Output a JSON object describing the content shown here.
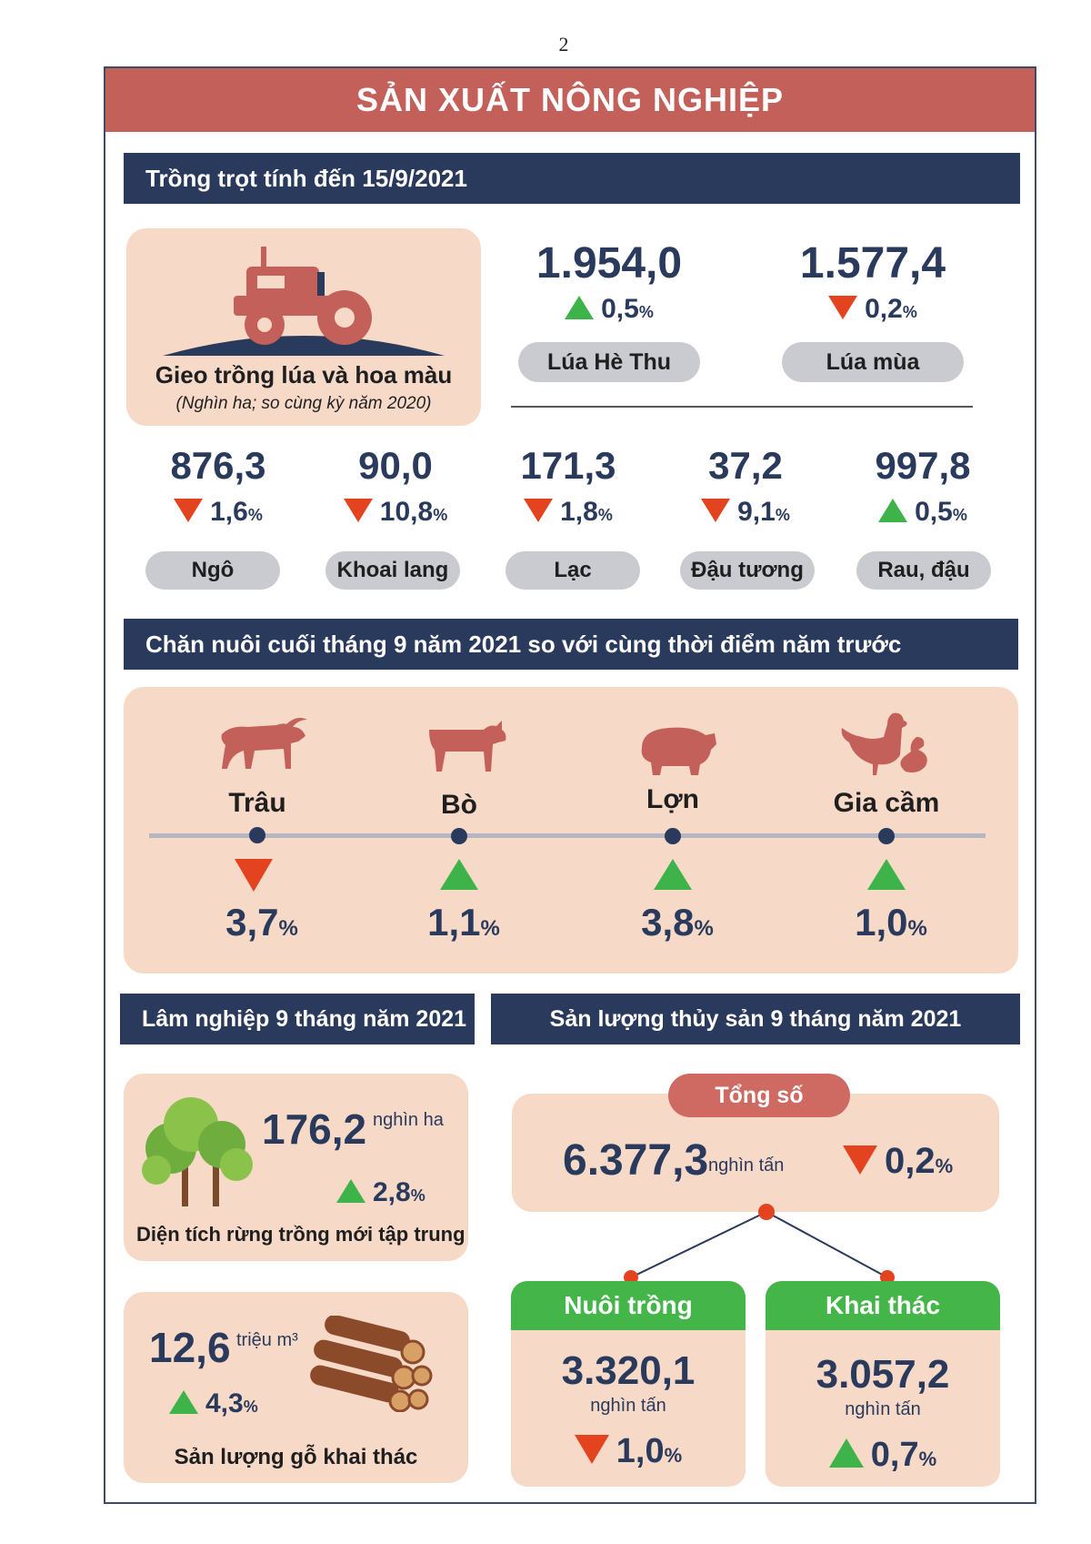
{
  "page_number": "2",
  "title": "SẢN XUẤT NÔNG NGHIỆP",
  "crops": {
    "header": "Trồng trọt tính đến 15/9/2021",
    "summary_label": "Gieo trồng lúa và hoa màu",
    "summary_note": "(Nghìn ha; so cùng kỳ năm 2020)",
    "top_items": [
      {
        "value": "1.954,0",
        "change": "0,5",
        "direction": "up",
        "label": "Lúa Hè Thu"
      },
      {
        "value": "1.577,4",
        "change": "0,2",
        "direction": "down",
        "label": "Lúa mùa"
      }
    ],
    "items": [
      {
        "value": "876,3",
        "change": "1,6",
        "direction": "down",
        "label": "Ngô"
      },
      {
        "value": "90,0",
        "change": "10,8",
        "direction": "down",
        "label": "Khoai lang"
      },
      {
        "value": "171,3",
        "change": "1,8",
        "direction": "down",
        "label": "Lạc"
      },
      {
        "value": "37,2",
        "change": "9,1",
        "direction": "down",
        "label": "Đậu tương"
      },
      {
        "value": "997,8",
        "change": "0,5",
        "direction": "up",
        "label": "Rau, đậu"
      }
    ]
  },
  "livestock": {
    "header": "Chăn nuôi cuối tháng 9 năm 2021 so với cùng thời điểm năm trước",
    "items": [
      {
        "label": "Trâu",
        "change": "3,7",
        "direction": "down",
        "icon": "buffalo-icon"
      },
      {
        "label": "Bò",
        "change": "1,1",
        "direction": "up",
        "icon": "cow-icon"
      },
      {
        "label": "Lợn",
        "change": "3,8",
        "direction": "up",
        "icon": "pig-icon"
      },
      {
        "label": "Gia cầm",
        "change": "1,0",
        "direction": "up",
        "icon": "poultry-icon"
      }
    ]
  },
  "forestry": {
    "header": "Lâm nghiệp 9 tháng năm 2021",
    "planted": {
      "value": "176,2",
      "unit": "nghìn ha",
      "change": "2,8",
      "direction": "up",
      "label": "Diện tích rừng trồng mới tập trung"
    },
    "timber": {
      "value": "12,6",
      "unit": "triệu m³",
      "change": "4,3",
      "direction": "up",
      "label": "Sản lượng gỗ khai thác"
    }
  },
  "fishery": {
    "header": "Sản lượng thủy sản 9 tháng năm 2021",
    "total": {
      "label": "Tổng số",
      "value": "6.377,3",
      "unit": "nghìn tấn",
      "change": "0,2",
      "direction": "down"
    },
    "aquaculture": {
      "label": "Nuôi trồng",
      "value": "3.320,1",
      "unit": "nghìn tấn",
      "change": "1,0",
      "direction": "down"
    },
    "capture": {
      "label": "Khai thác",
      "value": "3.057,2",
      "unit": "nghìn tấn",
      "change": "0,7",
      "direction": "up"
    }
  },
  "percent_sign": "%",
  "colors": {
    "header_red": "#c4605a",
    "navy": "#2a3a5c",
    "card": "#f7d9c7",
    "up": "#3db34a",
    "down": "#e3441f"
  }
}
